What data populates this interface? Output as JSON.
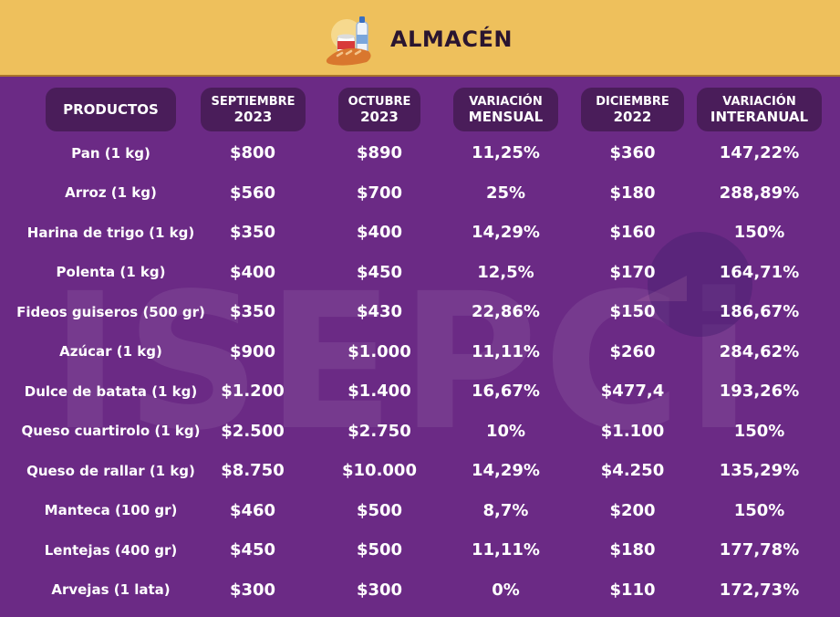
{
  "header": {
    "title": "ALMACÉN",
    "icon": "grocery-basket-icon",
    "background_color": "#eec05c"
  },
  "watermark": {
    "text": "ISEPCi"
  },
  "table": {
    "columns": [
      {
        "line1": "PRODUCTOS",
        "line2": ""
      },
      {
        "line1": "SEPTIEMBRE",
        "line2": "2023"
      },
      {
        "line1": "OCTUBRE",
        "line2": "2023"
      },
      {
        "line1": "VARIACIÓN",
        "line2": "MENSUAL"
      },
      {
        "line1": "DICIEMBRE",
        "line2": "2022"
      },
      {
        "line1": "VARIACIÓN",
        "line2": "INTERANUAL"
      }
    ],
    "rows": [
      {
        "product": "Pan (1 kg)",
        "sep_2023": "$800",
        "oct_2023": "$890",
        "monthly_var": "11,25%",
        "dec_2022": "$360",
        "yearly_var": "147,22%"
      },
      {
        "product": "Arroz (1 kg)",
        "sep_2023": "$560",
        "oct_2023": "$700",
        "monthly_var": "25%",
        "dec_2022": "$180",
        "yearly_var": "288,89%"
      },
      {
        "product": "Harina de trigo (1 kg)",
        "sep_2023": "$350",
        "oct_2023": "$400",
        "monthly_var": "14,29%",
        "dec_2022": "$160",
        "yearly_var": "150%"
      },
      {
        "product": "Polenta (1 kg)",
        "sep_2023": "$400",
        "oct_2023": "$450",
        "monthly_var": "12,5%",
        "dec_2022": "$170",
        "yearly_var": "164,71%"
      },
      {
        "product": "Fideos guiseros (500 gr)",
        "sep_2023": "$350",
        "oct_2023": "$430",
        "monthly_var": "22,86%",
        "dec_2022": "$150",
        "yearly_var": "186,67%"
      },
      {
        "product": "Azúcar (1 kg)",
        "sep_2023": "$900",
        "oct_2023": "$1.000",
        "monthly_var": "11,11%",
        "dec_2022": "$260",
        "yearly_var": "284,62%"
      },
      {
        "product": "Dulce de batata (1 kg)",
        "sep_2023": "$1.200",
        "oct_2023": "$1.400",
        "monthly_var": "16,67%",
        "dec_2022": "$477,4",
        "yearly_var": "193,26%"
      },
      {
        "product": "Queso cuartirolo (1 kg)",
        "sep_2023": "$2.500",
        "oct_2023": "$2.750",
        "monthly_var": "10%",
        "dec_2022": "$1.100",
        "yearly_var": "150%"
      },
      {
        "product": "Queso de rallar (1 kg)",
        "sep_2023": "$8.750",
        "oct_2023": "$10.000",
        "monthly_var": "14,29%",
        "dec_2022": "$4.250",
        "yearly_var": "135,29%"
      },
      {
        "product": "Manteca (100 gr)",
        "sep_2023": "$460",
        "oct_2023": "$500",
        "monthly_var": "8,7%",
        "dec_2022": "$200",
        "yearly_var": "150%"
      },
      {
        "product": "Lentejas (400 gr)",
        "sep_2023": "$450",
        "oct_2023": "$500",
        "monthly_var": "11,11%",
        "dec_2022": "$180",
        "yearly_var": "177,78%"
      },
      {
        "product": "Arvejas (1 lata)",
        "sep_2023": "$300",
        "oct_2023": "$300",
        "monthly_var": "0%",
        "dec_2022": "$110",
        "yearly_var": "172,73%"
      }
    ]
  }
}
